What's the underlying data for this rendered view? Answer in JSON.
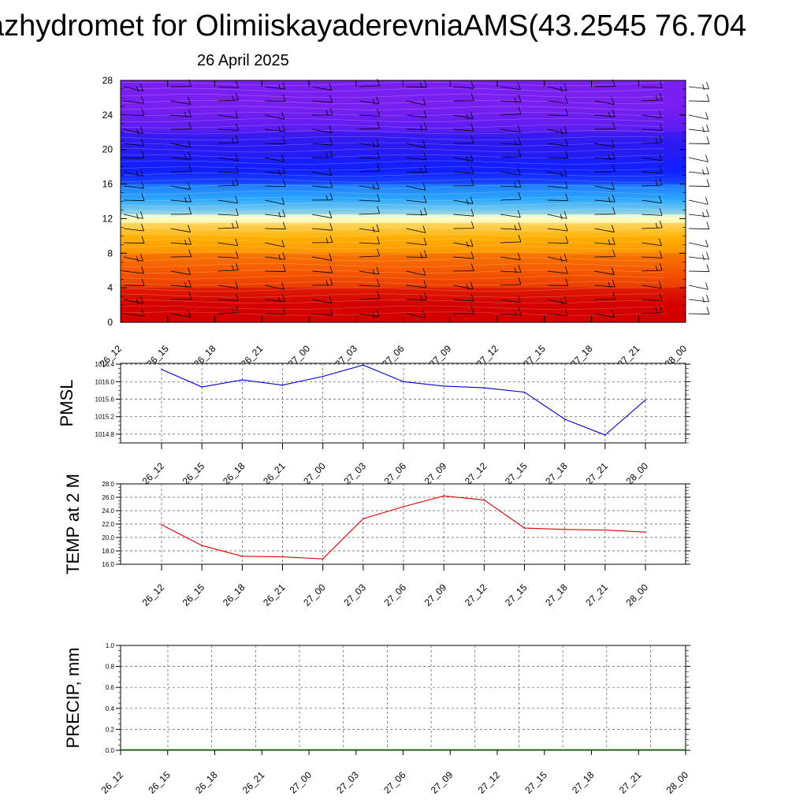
{
  "header": {
    "title": "azhydromet for OlimiiskayaderevniaAMS(43.2545 76.704",
    "date": "26 April 2025"
  },
  "chart_data": [
    {
      "type": "heatmap",
      "title": "",
      "xlabel": "",
      "ylabel": "",
      "x_tick_labels": [
        "26_12",
        "26_15",
        "26_18",
        "26_21",
        "27_00",
        "27_03",
        "27_06",
        "27_09",
        "27_12",
        "27_15",
        "27_18",
        "27_21",
        "28_00"
      ],
      "y_ticks": [
        0,
        4,
        8,
        12,
        16,
        20,
        24,
        28
      ],
      "ylim": [
        0,
        28
      ],
      "color_bands": [
        {
          "from": 0,
          "to": 4,
          "color": "#d40000"
        },
        {
          "from": 4,
          "to": 8,
          "color": "#f55a00"
        },
        {
          "from": 8,
          "to": 11.5,
          "color": "#ffb000"
        },
        {
          "from": 11.5,
          "to": 12.5,
          "color": "#ffffc8"
        },
        {
          "from": 12.5,
          "to": 16,
          "color": "#2aa8ff"
        },
        {
          "from": 16,
          "to": 19,
          "color": "#1020ff"
        },
        {
          "from": 19,
          "to": 22,
          "color": "#2b1af2"
        },
        {
          "from": 22,
          "to": 28,
          "color": "#7a1ff2"
        }
      ],
      "wind_barbs": true
    },
    {
      "type": "line",
      "ylabel": "PMSL",
      "x": [
        "26_12",
        "26_15",
        "26_18",
        "26_21",
        "27_00",
        "27_03",
        "27_06",
        "27_09",
        "27_12",
        "27_15",
        "27_18",
        "27_21",
        "28_00"
      ],
      "series": [
        {
          "values": [
            1016.28,
            1015.88,
            1016.04,
            1015.92,
            1016.12,
            1016.38,
            1016.0,
            1015.9,
            1015.86,
            1015.76,
            1015.14,
            1014.78,
            1015.58
          ],
          "color": "#0000cc"
        }
      ],
      "y_ticks": [
        1014.8,
        1015.2,
        1015.6,
        1016.0,
        1016.4
      ],
      "y_tick_labels": [
        "1014.8",
        "1015.2",
        "1015.6",
        "1016.0",
        "1016.4"
      ],
      "ylim": [
        1014.6,
        1016.42
      ],
      "grid": true
    },
    {
      "type": "line",
      "ylabel": "TEMP at 2 M",
      "x": [
        "26_12",
        "26_15",
        "26_18",
        "26_21",
        "27_00",
        "27_03",
        "27_06",
        "27_09",
        "27_12",
        "27_15",
        "27_18",
        "27_21",
        "28_00"
      ],
      "series": [
        {
          "values": [
            21.9,
            18.8,
            17.2,
            17.1,
            16.8,
            22.8,
            24.6,
            26.2,
            25.6,
            21.4,
            21.2,
            21.1,
            20.8
          ],
          "color": "#dd0000"
        }
      ],
      "y_ticks": [
        16,
        18,
        20,
        22,
        24,
        26,
        28
      ],
      "y_tick_labels": [
        "16.0",
        "18.0",
        "20.0",
        "22.0",
        "24.0",
        "26.0",
        "28.0"
      ],
      "ylim": [
        16,
        28
      ],
      "grid": true
    },
    {
      "type": "line",
      "ylabel": "PRECIP, mm",
      "x_tick_labels": [
        "26_12",
        "26_15",
        "26_18",
        "26_21",
        "27_00",
        "27_03",
        "27_06",
        "27_09",
        "27_12",
        "27_15",
        "27_18",
        "27_21",
        "28_00"
      ],
      "series": [
        {
          "values": [
            0,
            0,
            0,
            0,
            0,
            0,
            0,
            0,
            0,
            0,
            0,
            0,
            0
          ],
          "color": "#006400"
        }
      ],
      "y_ticks": [
        0,
        0.2,
        0.4,
        0.6,
        0.8,
        1.0
      ],
      "y_tick_labels": [
        "0.0",
        "0.2",
        "0.4",
        "0.6",
        "0.8",
        "1.0"
      ],
      "ylim": [
        0,
        1
      ],
      "grid": true
    }
  ]
}
